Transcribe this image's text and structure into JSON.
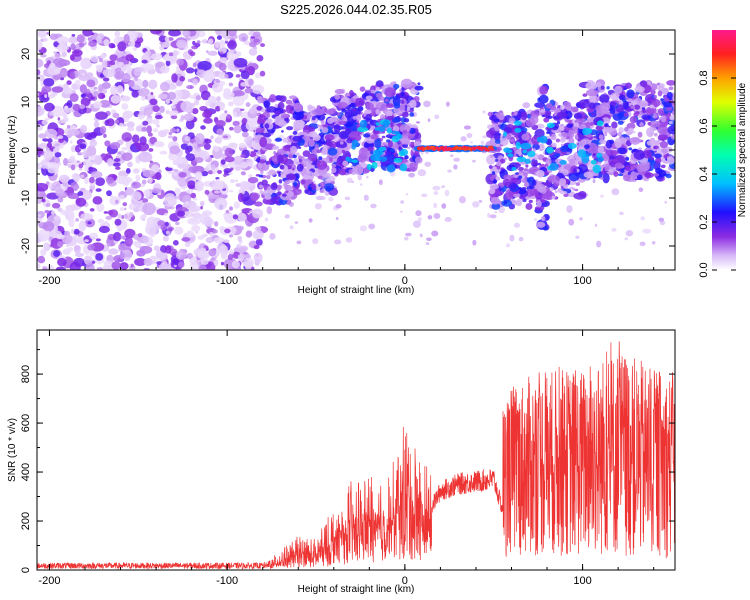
{
  "title": "S225.2026.044.02.35.R05",
  "chart_data": [
    {
      "type": "heatmap",
      "xlabel": "Height of straight line (km)",
      "ylabel": "Frequency (Hz)",
      "xlim": [
        -207,
        152
      ],
      "ylim": [
        -25,
        25
      ],
      "xticks": [
        -200,
        -100,
        0,
        100
      ],
      "yticks": [
        -20,
        -10,
        0,
        10,
        20
      ],
      "colorbar": {
        "label": "Normalized spectral amplitude",
        "range": [
          0,
          1
        ],
        "ticks": [
          "0.0",
          "0.2",
          "0.4",
          "0.6",
          "0.8"
        ]
      },
      "features": [
        {
          "segment": "noise",
          "x_range": [
            -207,
            -80
          ],
          "freq_spread": [
            -25,
            25
          ],
          "amplitude": 0.12
        },
        {
          "segment": "scatter",
          "x_range": [
            -80,
            0
          ],
          "freq_center": 2,
          "amplitude": 0.2
        },
        {
          "segment": "line",
          "x_range": [
            8,
            50
          ],
          "freq_center": 0,
          "amplitude": 0.95
        },
        {
          "segment": "scatter",
          "x_range": [
            50,
            152
          ],
          "freq_center": 0,
          "amplitude": 0.25
        }
      ]
    },
    {
      "type": "line",
      "xlabel": "Height of straight line (km)",
      "ylabel": "SNR (10 * v/v)",
      "xlim": [
        -207,
        152
      ],
      "ylim": [
        0,
        980
      ],
      "xticks": [
        -200,
        -100,
        0,
        100
      ],
      "yticks": [
        0,
        200,
        400,
        600,
        800
      ],
      "series": [
        {
          "name": "SNR",
          "color": "#ee3333",
          "x_points": [
            -207,
            -80,
            -75,
            -60,
            -50,
            -40,
            -30,
            -20,
            -10,
            0,
            10,
            20,
            30,
            40,
            50,
            55,
            60,
            80,
            100,
            120,
            140,
            152
          ],
          "baseline": [
            18,
            18,
            30,
            60,
            50,
            80,
            140,
            170,
            190,
            220,
            200,
            330,
            360,
            370,
            380,
            250,
            290,
            280,
            260,
            250,
            240,
            230
          ],
          "peak": [
            30,
            30,
            50,
            140,
            130,
            260,
            380,
            400,
            390,
            620,
            450,
            380,
            400,
            420,
            420,
            700,
            780,
            850,
            860,
            960,
            860,
            850
          ]
        }
      ]
    }
  ]
}
